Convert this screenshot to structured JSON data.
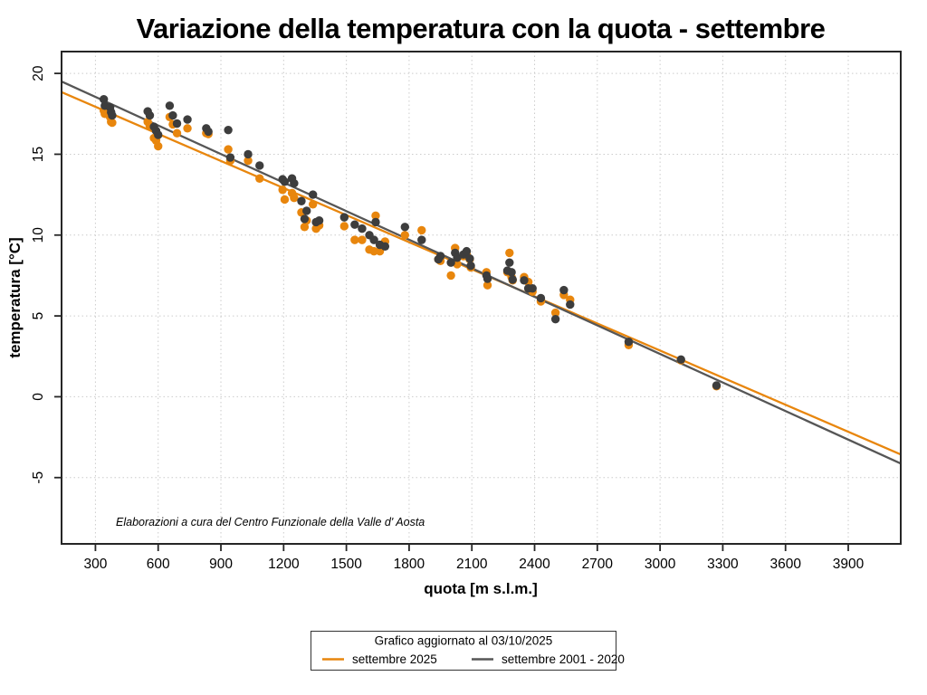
{
  "chart_data": {
    "type": "scatter",
    "title": "Variazione della temperatura con la quota -  settembre",
    "xlabel": "quota [m s.l.m.]",
    "ylabel": "temperatura [°C]",
    "annotation": "Elaborazioni a cura del Centro Funzionale della Valle d' Aosta",
    "xlim": [
      138,
      4151
    ],
    "ylim": [
      -9.1,
      21.35
    ],
    "xticks": [
      300,
      600,
      900,
      1200,
      1500,
      1800,
      2100,
      2400,
      2700,
      3000,
      3300,
      3600,
      3900
    ],
    "yticks": [
      -5,
      0,
      5,
      10,
      15,
      20
    ],
    "grid": true,
    "legend": {
      "title": "Grafico aggiornato al 03/10/2025",
      "position": "bottom-center",
      "items": [
        {
          "label": "settembre 2025",
          "color": "#E8860D"
        },
        {
          "label": "settembre 2001 - 2020",
          "color": "#565656"
        }
      ]
    },
    "series": [
      {
        "name": "settembre 2025",
        "color": "#E8860D",
        "points": [
          [
            340,
            17.7
          ],
          [
            345,
            17.5
          ],
          [
            370,
            17.3
          ],
          [
            375,
            17.0
          ],
          [
            380,
            16.95
          ],
          [
            550,
            17.0
          ],
          [
            560,
            16.75
          ],
          [
            580,
            16.0
          ],
          [
            590,
            15.85
          ],
          [
            600,
            15.5
          ],
          [
            655,
            17.3
          ],
          [
            670,
            16.85
          ],
          [
            690,
            16.3
          ],
          [
            740,
            16.6
          ],
          [
            830,
            16.3
          ],
          [
            840,
            16.25
          ],
          [
            935,
            15.3
          ],
          [
            945,
            14.6
          ],
          [
            1030,
            14.6
          ],
          [
            1085,
            13.5
          ],
          [
            1195,
            12.8
          ],
          [
            1205,
            12.2
          ],
          [
            1240,
            12.6
          ],
          [
            1250,
            12.3
          ],
          [
            1285,
            11.4
          ],
          [
            1300,
            10.5
          ],
          [
            1310,
            10.9
          ],
          [
            1340,
            11.9
          ],
          [
            1355,
            10.4
          ],
          [
            1370,
            10.6
          ],
          [
            1490,
            10.55
          ],
          [
            1540,
            9.7
          ],
          [
            1575,
            9.7
          ],
          [
            1610,
            9.1
          ],
          [
            1632,
            9.0
          ],
          [
            1640,
            11.2
          ],
          [
            1660,
            9.0
          ],
          [
            1685,
            9.6
          ],
          [
            1780,
            10.0
          ],
          [
            1860,
            10.3
          ],
          [
            1940,
            8.5
          ],
          [
            1950,
            8.4
          ],
          [
            2000,
            7.5
          ],
          [
            2020,
            9.2
          ],
          [
            2030,
            8.2
          ],
          [
            2060,
            8.7
          ],
          [
            2075,
            8.8
          ],
          [
            2090,
            8.5
          ],
          [
            2095,
            8.0
          ],
          [
            2170,
            7.7
          ],
          [
            2175,
            6.9
          ],
          [
            2270,
            7.7
          ],
          [
            2280,
            8.9
          ],
          [
            2290,
            7.4
          ],
          [
            2295,
            7.2
          ],
          [
            2350,
            7.4
          ],
          [
            2370,
            7.1
          ],
          [
            2390,
            6.5
          ],
          [
            2430,
            5.9
          ],
          [
            2500,
            5.2
          ],
          [
            2540,
            6.3
          ],
          [
            2570,
            6.0
          ],
          [
            2850,
            3.2
          ],
          [
            3100,
            2.25
          ],
          [
            3270,
            0.65
          ]
        ]
      },
      {
        "name": "settembre 2001 - 2020",
        "color": "#3D3D3D",
        "points": [
          [
            340,
            18.4
          ],
          [
            345,
            18.0
          ],
          [
            370,
            17.9
          ],
          [
            375,
            17.6
          ],
          [
            380,
            17.4
          ],
          [
            550,
            17.65
          ],
          [
            560,
            17.4
          ],
          [
            580,
            16.7
          ],
          [
            590,
            16.45
          ],
          [
            600,
            16.2
          ],
          [
            655,
            18.0
          ],
          [
            670,
            17.4
          ],
          [
            690,
            16.9
          ],
          [
            740,
            17.15
          ],
          [
            830,
            16.6
          ],
          [
            840,
            16.4
          ],
          [
            935,
            16.5
          ],
          [
            945,
            14.8
          ],
          [
            1030,
            15.0
          ],
          [
            1085,
            14.3
          ],
          [
            1195,
            13.45
          ],
          [
            1205,
            13.3
          ],
          [
            1240,
            13.5
          ],
          [
            1250,
            13.2
          ],
          [
            1285,
            12.1
          ],
          [
            1300,
            11.0
          ],
          [
            1310,
            11.5
          ],
          [
            1340,
            12.5
          ],
          [
            1355,
            10.8
          ],
          [
            1370,
            10.9
          ],
          [
            1490,
            11.1
          ],
          [
            1540,
            10.65
          ],
          [
            1575,
            10.4
          ],
          [
            1610,
            10.0
          ],
          [
            1632,
            9.7
          ],
          [
            1640,
            10.8
          ],
          [
            1660,
            9.4
          ],
          [
            1685,
            9.3
          ],
          [
            1780,
            10.5
          ],
          [
            1860,
            9.7
          ],
          [
            1940,
            8.5
          ],
          [
            1950,
            8.7
          ],
          [
            2000,
            8.3
          ],
          [
            2020,
            8.9
          ],
          [
            2030,
            8.6
          ],
          [
            2060,
            8.8
          ],
          [
            2075,
            9.0
          ],
          [
            2090,
            8.55
          ],
          [
            2095,
            8.1
          ],
          [
            2170,
            7.5
          ],
          [
            2175,
            7.3
          ],
          [
            2270,
            7.8
          ],
          [
            2280,
            8.3
          ],
          [
            2290,
            7.7
          ],
          [
            2295,
            7.25
          ],
          [
            2350,
            7.2
          ],
          [
            2370,
            6.7
          ],
          [
            2390,
            6.7
          ],
          [
            2430,
            6.1
          ],
          [
            2500,
            4.8
          ],
          [
            2540,
            6.6
          ],
          [
            2570,
            5.7
          ],
          [
            2850,
            3.4
          ],
          [
            3100,
            2.3
          ],
          [
            3270,
            0.7
          ]
        ]
      }
    ],
    "trend_lines": [
      {
        "series": "settembre 2025",
        "color": "#E8860D",
        "x": [
          138,
          4151
        ],
        "y": [
          18.84,
          -3.57
        ]
      },
      {
        "series": "settembre 2001 - 2020",
        "color": "#565656",
        "x": [
          138,
          4151
        ],
        "y": [
          19.5,
          -4.13
        ]
      }
    ]
  }
}
